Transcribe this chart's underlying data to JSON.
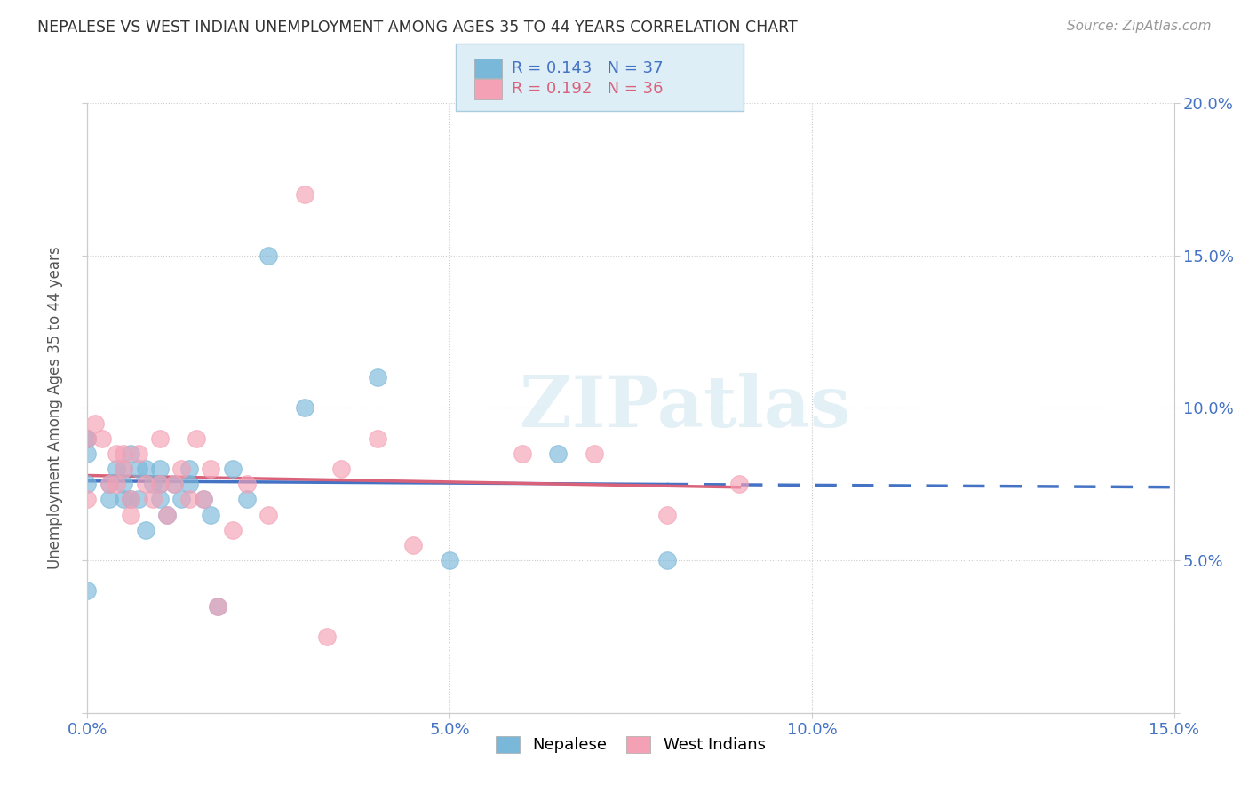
{
  "title": "NEPALESE VS WEST INDIAN UNEMPLOYMENT AMONG AGES 35 TO 44 YEARS CORRELATION CHART",
  "source": "Source: ZipAtlas.com",
  "ylabel": "Unemployment Among Ages 35 to 44 years",
  "xlim": [
    0.0,
    0.15
  ],
  "ylim": [
    0.0,
    0.2
  ],
  "xticks": [
    0.0,
    0.05,
    0.1,
    0.15
  ],
  "yticks": [
    0.0,
    0.05,
    0.1,
    0.15,
    0.2
  ],
  "xtick_labels": [
    "0.0%",
    "5.0%",
    "10.0%",
    "15.0%"
  ],
  "ytick_labels_right": [
    "",
    "5.0%",
    "10.0%",
    "15.0%",
    "20.0%"
  ],
  "nepalese_color": "#7ab8d9",
  "west_indian_color": "#f4a0b5",
  "nepalese_line_color": "#4472c4",
  "west_indian_line_color": "#d9627a",
  "nepalese_R": 0.143,
  "nepalese_N": 37,
  "west_indian_R": 0.192,
  "west_indian_N": 36,
  "watermark": "ZIPatlas",
  "nepalese_x": [
    0.0,
    0.0,
    0.0,
    0.0,
    0.0,
    0.003,
    0.003,
    0.004,
    0.005,
    0.005,
    0.005,
    0.006,
    0.006,
    0.007,
    0.007,
    0.008,
    0.008,
    0.009,
    0.01,
    0.01,
    0.01,
    0.011,
    0.012,
    0.013,
    0.014,
    0.014,
    0.016,
    0.017,
    0.018,
    0.02,
    0.022,
    0.025,
    0.03,
    0.04,
    0.05,
    0.065,
    0.08
  ],
  "nepalese_y": [
    0.04,
    0.075,
    0.085,
    0.09,
    0.09,
    0.07,
    0.075,
    0.08,
    0.08,
    0.075,
    0.07,
    0.07,
    0.085,
    0.08,
    0.07,
    0.06,
    0.08,
    0.075,
    0.075,
    0.07,
    0.08,
    0.065,
    0.075,
    0.07,
    0.08,
    0.075,
    0.07,
    0.065,
    0.035,
    0.08,
    0.07,
    0.15,
    0.1,
    0.11,
    0.05,
    0.085,
    0.05
  ],
  "west_indian_x": [
    0.0,
    0.0,
    0.001,
    0.002,
    0.003,
    0.004,
    0.004,
    0.005,
    0.005,
    0.006,
    0.006,
    0.007,
    0.008,
    0.009,
    0.01,
    0.01,
    0.011,
    0.012,
    0.013,
    0.014,
    0.015,
    0.016,
    0.017,
    0.018,
    0.02,
    0.022,
    0.025,
    0.03,
    0.033,
    0.035,
    0.04,
    0.045,
    0.06,
    0.07,
    0.08,
    0.09
  ],
  "west_indian_y": [
    0.07,
    0.09,
    0.095,
    0.09,
    0.075,
    0.085,
    0.075,
    0.085,
    0.08,
    0.065,
    0.07,
    0.085,
    0.075,
    0.07,
    0.09,
    0.075,
    0.065,
    0.075,
    0.08,
    0.07,
    0.09,
    0.07,
    0.08,
    0.035,
    0.06,
    0.075,
    0.065,
    0.17,
    0.025,
    0.08,
    0.09,
    0.055,
    0.085,
    0.085,
    0.065,
    0.075
  ]
}
